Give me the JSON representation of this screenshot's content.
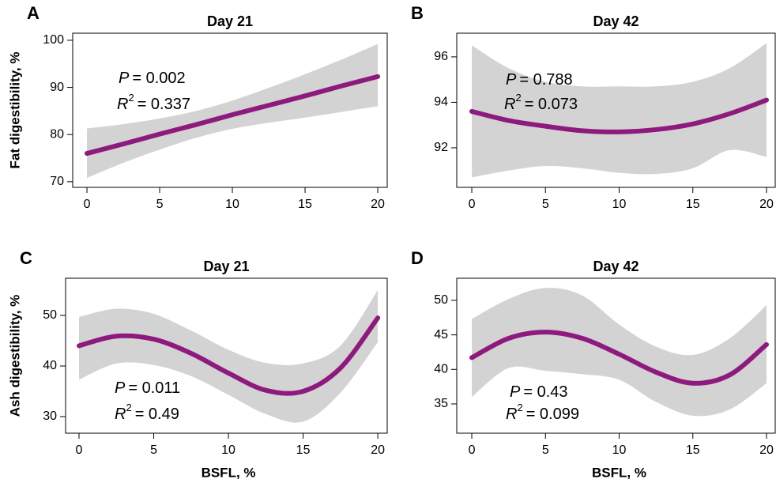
{
  "chart_data": [
    {
      "type": "line",
      "panel_label": "A",
      "title": "Day 21",
      "y_label": "Fat digestibility, %",
      "x": [
        0,
        2.5,
        5,
        7.5,
        10,
        12.5,
        15,
        17.5,
        20
      ],
      "series": [
        {
          "color": "#8e1a7e",
          "band_color": "#d3d3d3",
          "values": [
            76,
            78,
            80.1,
            82.1,
            84.2,
            86.2,
            88.2,
            90.3,
            92.3
          ],
          "lower": [
            70.8,
            74,
            76.8,
            79.3,
            81.2,
            82.5,
            83.6,
            84.8,
            86
          ],
          "upper": [
            81.3,
            82.2,
            83.4,
            85,
            87.2,
            89.9,
            92.8,
            95.9,
            99.2
          ]
        }
      ],
      "annotations": [
        {
          "symbol": "P",
          "text": "= 0.002"
        },
        {
          "symbol": "R",
          "sup": "2",
          "text": "= 0.337"
        }
      ],
      "xlim": [
        -0.98,
        20.65
      ],
      "xticks": [
        0,
        5,
        10,
        15,
        20
      ],
      "ylim": [
        68.8,
        101.5
      ],
      "yticks": [
        70,
        80,
        90,
        100
      ]
    },
    {
      "type": "line",
      "panel_label": "B",
      "title": "Day 42",
      "x": [
        0,
        2.5,
        5,
        7.5,
        10,
        12.5,
        15,
        17.5,
        20
      ],
      "series": [
        {
          "color": "#8e1a7e",
          "band_color": "#d3d3d3",
          "values": [
            93.6,
            93.2,
            92.95,
            92.75,
            92.7,
            92.8,
            93.05,
            93.5,
            94.1
          ],
          "lower": [
            90.7,
            91,
            91.2,
            91.1,
            90.9,
            90.85,
            91.1,
            91.9,
            91.6
          ],
          "upper": [
            96.5,
            95.5,
            94.9,
            94.7,
            94.7,
            94.7,
            94.9,
            95.5,
            96.6
          ]
        }
      ],
      "annotations": [
        {
          "symbol": "P",
          "text": "= 0.788"
        },
        {
          "symbol": "R",
          "sup": "2",
          "text": "= 0.073"
        }
      ],
      "xlim": [
        -1.02,
        20.59
      ],
      "xticks": [
        0,
        5,
        10,
        15,
        20
      ],
      "ylim": [
        90.26,
        97.04
      ],
      "yticks": [
        92,
        94,
        96
      ]
    },
    {
      "type": "line",
      "panel_label": "C",
      "title": "Day 21",
      "y_label": "Ash digestibility, %",
      "x_label": "BSFL, %",
      "x": [
        0,
        2.5,
        5,
        7.5,
        10,
        12.5,
        15,
        17.5,
        20
      ],
      "series": [
        {
          "color": "#8e1a7e",
          "band_color": "#d3d3d3",
          "values": [
            44,
            45.9,
            45.3,
            42.5,
            38.6,
            35.2,
            35,
            39.6,
            49.5
          ],
          "lower": [
            37.3,
            40.5,
            40.2,
            38,
            34.3,
            30.5,
            29,
            34.7,
            44.7
          ],
          "upper": [
            49.7,
            51.3,
            50.3,
            47,
            43.2,
            40.6,
            40.5,
            44,
            55
          ]
        }
      ],
      "annotations": [
        {
          "symbol": "P",
          "text": "= 0.011"
        },
        {
          "symbol": "R",
          "sup": "2",
          "text": "= 0.49"
        }
      ],
      "xlim": [
        -0.9,
        20.63
      ],
      "xticks": [
        0,
        5,
        10,
        15,
        20
      ],
      "ylim": [
        26.72,
        57.34
      ],
      "yticks": [
        30,
        40,
        50
      ]
    },
    {
      "type": "line",
      "panel_label": "D",
      "title": "Day 42",
      "x_label": "BSFL, %",
      "x": [
        0,
        2.5,
        5,
        7.5,
        10,
        12.5,
        15,
        17.5,
        20
      ],
      "series": [
        {
          "color": "#8e1a7e",
          "band_color": "#d3d3d3",
          "values": [
            41.7,
            44.5,
            45.4,
            44.5,
            42.2,
            39.6,
            38,
            39.2,
            43.6
          ],
          "lower": [
            36,
            40.2,
            39.8,
            39.3,
            38.5,
            35.3,
            33.3,
            34.2,
            38
          ],
          "upper": [
            47.3,
            50.2,
            51.8,
            50.7,
            46.5,
            43.3,
            42.1,
            44.5,
            49.3
          ]
        }
      ],
      "annotations": [
        {
          "symbol": "P",
          "text": "= 0.43"
        },
        {
          "symbol": "R",
          "sup": "2",
          "text": "= 0.099"
        }
      ],
      "xlim": [
        -1.02,
        20.59
      ],
      "xticks": [
        0,
        5,
        10,
        15,
        20
      ],
      "ylim": [
        30.76,
        53.2
      ],
      "yticks": [
        35,
        40,
        45,
        50
      ]
    }
  ]
}
